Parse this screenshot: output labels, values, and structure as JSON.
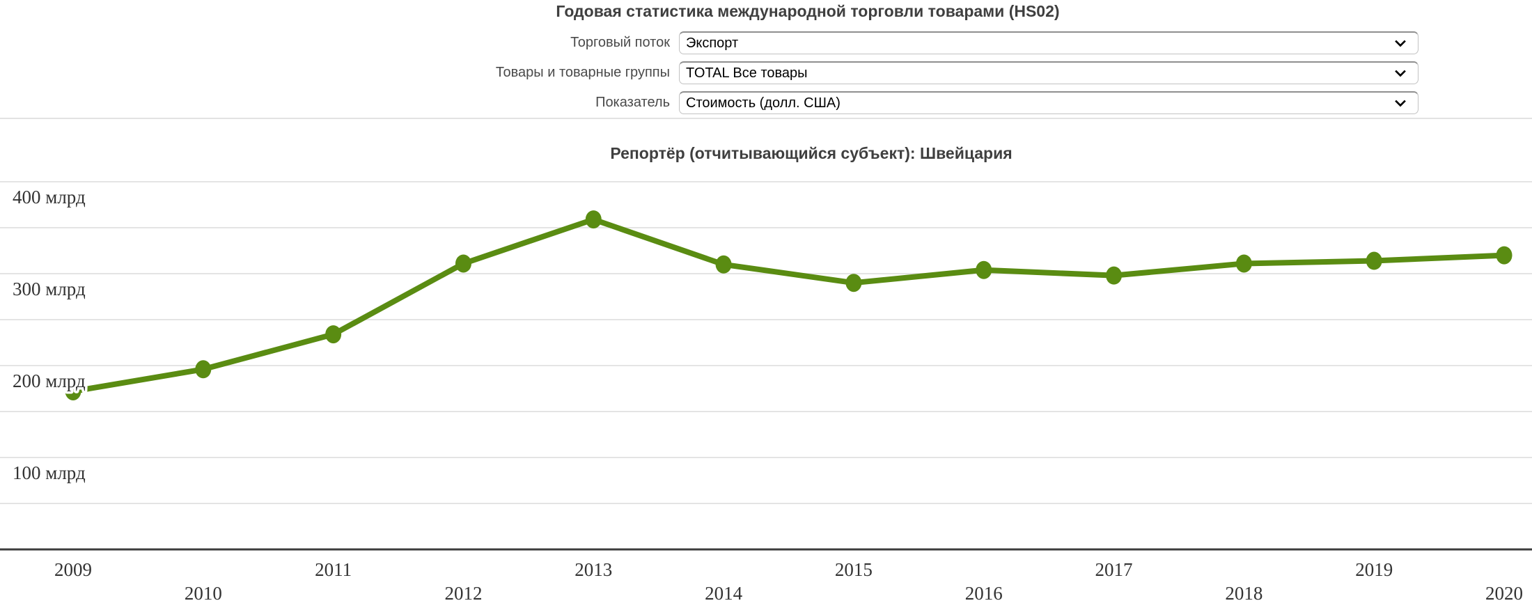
{
  "header": {
    "title": "Годовая статистика международной торговли товарами (HS02)",
    "controls": [
      {
        "label": "Торговый поток",
        "value": "Экспорт"
      },
      {
        "label": "Товары и товарные группы",
        "value": "TOTAL Все товары"
      },
      {
        "label": "Показатель",
        "value": "Стоимость (долл. США)"
      }
    ]
  },
  "chart_data": {
    "type": "line",
    "title": "Репортёр (отчитывающийся субъект): Швейцария",
    "categories": [
      "2009",
      "2010",
      "2011",
      "2012",
      "2013",
      "2014",
      "2015",
      "2016",
      "2017",
      "2018",
      "2019",
      "2020"
    ],
    "series": [
      {
        "name": "Экспорт",
        "values": [
          172,
          196,
          234,
          311,
          359,
          310,
          290,
          304,
          298,
          311,
          314,
          320
        ]
      }
    ],
    "values_unit": "млрд долл. США",
    "xlabel": "",
    "ylabel": "",
    "ylim": [
      0,
      420
    ],
    "grid": true,
    "legend_position": "none",
    "gridline_values": [
      50,
      100,
      150,
      200,
      250,
      300,
      350,
      400
    ],
    "yticks": [
      {
        "value": 100,
        "label": "100 млрд"
      },
      {
        "value": 200,
        "label": "200 млрд"
      },
      {
        "value": 300,
        "label": "300 млрд"
      },
      {
        "value": 400,
        "label": "400 млрд"
      }
    ],
    "line_color": "#5a8c12"
  }
}
